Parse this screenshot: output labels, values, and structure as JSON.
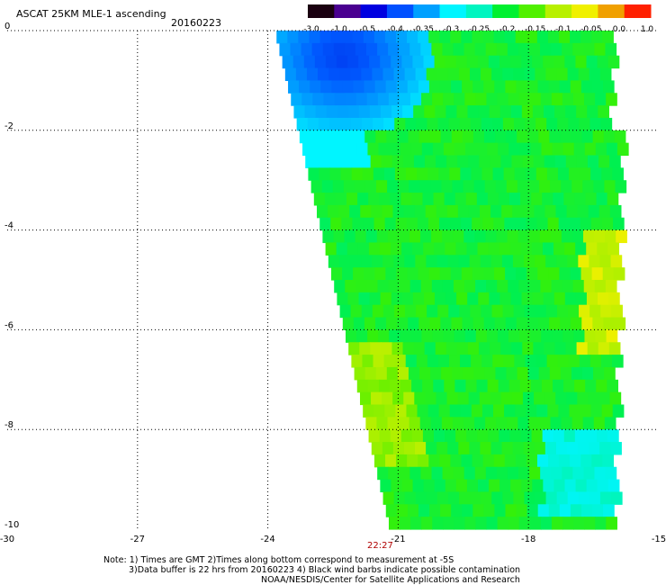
{
  "header": {
    "title": "ASCAT 25KM MLE-1 ascending",
    "date": "20160223"
  },
  "colorbar": {
    "labels": [
      "-3.0",
      "-1.0",
      "-0.5",
      "-0.4",
      "-0.35",
      "-0.3",
      "-0.25",
      "-0.2",
      "-0.15",
      "-0.1",
      "-0.05",
      "0.0",
      "1.0"
    ],
    "colors": [
      "#1a0010",
      "#4a0090",
      "#0000e0",
      "#0050ff",
      "#00a0ff",
      "#00f5ff",
      "#00f5c0",
      "#00f030",
      "#50f000",
      "#b8f000",
      "#f0f000",
      "#f0a000",
      "#ff2000"
    ]
  },
  "chart_data": {
    "type": "heatmap",
    "title": "ASCAT 25KM MLE-1 ascending",
    "subtitle": "20160223",
    "xlabel": "",
    "ylabel": "",
    "xlim": [
      -30,
      -15
    ],
    "ylim": [
      -10,
      0
    ],
    "x_ticks": [
      "-30",
      "-27",
      "-24",
      "-21",
      "-18",
      "-15"
    ],
    "y_ticks": [
      "0",
      "-2",
      "-4",
      "-6",
      "-8",
      "-10"
    ],
    "grid": true,
    "swath_time_label": "22:27",
    "approx_regions": [
      {
        "region": "northwest corner (lat 0 to -1.5, lon -23.7 to -21.5)",
        "value": -0.4
      },
      {
        "region": "north edge (lat -1.5 to -2.5, lon -23.2 to -22)",
        "value": -0.3
      },
      {
        "region": "swath interior",
        "value": -0.17
      },
      {
        "region": "east edge (lat -4 to -6, lon -16.5 to -15.9)",
        "value": -0.07
      },
      {
        "region": "west edge (lat -6 to -8.5, lon -22.5 to -21)",
        "value": -0.1
      },
      {
        "region": "southeast (lat -8 to -9.5, lon -17.5 to -15.6)",
        "value": -0.27
      }
    ]
  },
  "footer": {
    "note1": "Note: 1) Times are GMT 2)Times along bottom correspond to measurement at -5S",
    "note2": "3)Data buffer is 22 hrs from 20160223 4) Black wind barbs indicate possible contamination",
    "credit": "NOAA/NESDIS/Center for Satellite Applications and Research"
  }
}
